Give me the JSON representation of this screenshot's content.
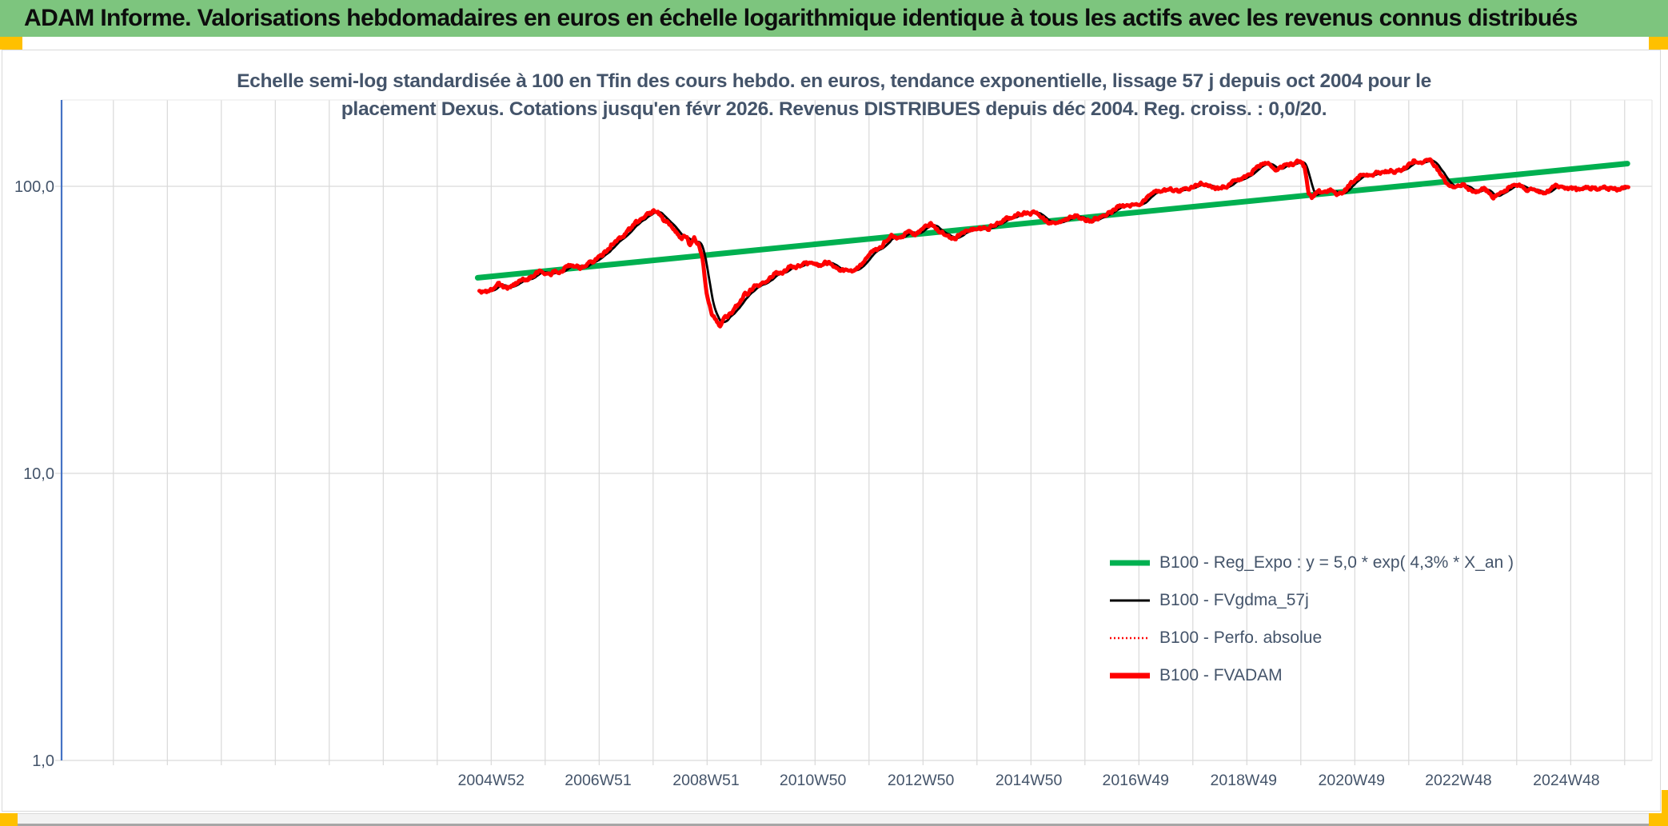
{
  "header": {
    "title": "ADAM Informe. Valorisations hebdomadaires en euros en échelle logarithmique identique à tous les actifs avec les revenus connus distribués",
    "bg_color": "#7DC57E",
    "corner_marker_color": "#FFC000"
  },
  "subtitle": {
    "line1": "Echelle semi-log standardisée à 100 en Tfin des cours hebdo. en euros, tendance exponentielle, lissage 57 j depuis oct 2004 pour le",
    "line2": "placement Dexus. Cotations jusqu'en févr 2026. Revenus DISTRIBUES depuis déc 2004. Reg. croiss. : 0,0/20."
  },
  "chart_data": {
    "type": "line",
    "title": "Echelle semi-log standardisée à 100 en Tfin des cours hebdo. en euros, tendance exponentielle, lissage 57 j depuis oct 2004 pour le placement Dexus. Cotations jusqu'en févr 2026. Revenus DISTRIBUES depuis déc 2004. Reg. croiss. : 0,0/20.",
    "grid": true,
    "legend_position": "inside-lower-right",
    "colors": {
      "axis_line": "#4472C4",
      "gridline": "#D9D9D9",
      "tick_text": "#44546A"
    },
    "y_axis": {
      "scale": "log",
      "ylim": [
        1,
        200
      ],
      "ticks": [
        {
          "label": "100,0",
          "value": 100
        },
        {
          "label": "10,0",
          "value": 10
        },
        {
          "label": "1,0",
          "value": 1
        }
      ]
    },
    "x_axis": {
      "unit": "week-of-year",
      "range_t": [
        1997.0,
        2026.5
      ],
      "gridline_every_years": 1,
      "ticks": [
        {
          "label": "2004W52",
          "t": 2005.0
        },
        {
          "label": "2006W51",
          "t": 2006.98
        },
        {
          "label": "2008W51",
          "t": 2008.98
        },
        {
          "label": "2010W50",
          "t": 2010.96
        },
        {
          "label": "2012W50",
          "t": 2012.96
        },
        {
          "label": "2014W50",
          "t": 2014.96
        },
        {
          "label": "2016W49",
          "t": 2016.94
        },
        {
          "label": "2018W49",
          "t": 2018.94
        },
        {
          "label": "2020W49",
          "t": 2020.94
        },
        {
          "label": "2022W48",
          "t": 2022.92
        },
        {
          "label": "2024W48",
          "t": 2024.92
        }
      ]
    },
    "series": [
      {
        "name": "B100 - Reg_Expo : y = 5,0 * exp( 4,3% *  X_an )",
        "color": "#00B050",
        "width": 7,
        "style": "solid",
        "kind": "trend",
        "model": {
          "type": "exponential",
          "t_start": 2004.75,
          "t_end": 2026.05,
          "v_start": 48.0,
          "annual_rate": 0.043
        }
      },
      {
        "name": "B100 - FVgdma_57j",
        "color": "#000000",
        "width": 2.8,
        "style": "solid",
        "kind": "moving-average-of-fvadam",
        "window_weeks": 9
      },
      {
        "name": "B100 - Perfo. absolue",
        "color": "#FF0000",
        "width": 1.5,
        "style": "dotted",
        "kind": "same-path-as-fvadam"
      },
      {
        "name": "B100 - FVADAM",
        "color": "#FF0000",
        "width": 5,
        "style": "solid",
        "kind": "weekly",
        "t_start": 2004.78,
        "t_end": 2026.08,
        "keypoints": [
          [
            2004.78,
            43
          ],
          [
            2004.88,
            42
          ],
          [
            2005.0,
            43.5
          ],
          [
            2005.15,
            45
          ],
          [
            2005.3,
            44
          ],
          [
            2005.5,
            46.5
          ],
          [
            2005.7,
            48.5
          ],
          [
            2005.9,
            50.5
          ],
          [
            2006.1,
            49.5
          ],
          [
            2006.3,
            51.5
          ],
          [
            2006.5,
            53
          ],
          [
            2006.65,
            52
          ],
          [
            2006.85,
            54.5
          ],
          [
            2007.05,
            58
          ],
          [
            2007.2,
            62
          ],
          [
            2007.35,
            65.5
          ],
          [
            2007.5,
            69
          ],
          [
            2007.65,
            74
          ],
          [
            2007.8,
            78
          ],
          [
            2007.95,
            80.5
          ],
          [
            2008.08,
            82.5
          ],
          [
            2008.2,
            77
          ],
          [
            2008.3,
            73
          ],
          [
            2008.42,
            69
          ],
          [
            2008.52,
            65
          ],
          [
            2008.6,
            68
          ],
          [
            2008.68,
            62.5
          ],
          [
            2008.76,
            66
          ],
          [
            2008.84,
            63
          ],
          [
            2008.92,
            55
          ],
          [
            2009.0,
            41
          ],
          [
            2009.08,
            36
          ],
          [
            2009.16,
            34.5
          ],
          [
            2009.24,
            33
          ],
          [
            2009.33,
            35.5
          ],
          [
            2009.45,
            36.5
          ],
          [
            2009.58,
            39
          ],
          [
            2009.7,
            42
          ],
          [
            2009.85,
            44
          ],
          [
            2010.0,
            46.5
          ],
          [
            2010.2,
            48.5
          ],
          [
            2010.4,
            50.5
          ],
          [
            2010.6,
            52.5
          ],
          [
            2010.8,
            54
          ],
          [
            2010.95,
            54.5
          ],
          [
            2011.1,
            53
          ],
          [
            2011.25,
            54
          ],
          [
            2011.4,
            52
          ],
          [
            2011.55,
            50.5
          ],
          [
            2011.7,
            50
          ],
          [
            2011.85,
            53
          ],
          [
            2012.0,
            56.5
          ],
          [
            2012.2,
            62
          ],
          [
            2012.4,
            67
          ],
          [
            2012.55,
            65.5
          ],
          [
            2012.7,
            68.5
          ],
          [
            2012.85,
            67
          ],
          [
            2013.0,
            71
          ],
          [
            2013.15,
            75
          ],
          [
            2013.3,
            71
          ],
          [
            2013.45,
            67.5
          ],
          [
            2013.6,
            66.5
          ],
          [
            2013.75,
            68.5
          ],
          [
            2013.9,
            70.5
          ],
          [
            2014.1,
            71
          ],
          [
            2014.3,
            73
          ],
          [
            2014.5,
            75.5
          ],
          [
            2014.7,
            78.5
          ],
          [
            2014.9,
            81
          ],
          [
            2015.05,
            82
          ],
          [
            2015.2,
            78.5
          ],
          [
            2015.35,
            75.5
          ],
          [
            2015.5,
            73.5
          ],
          [
            2015.65,
            77
          ],
          [
            2015.8,
            79.5
          ],
          [
            2015.95,
            78
          ],
          [
            2016.1,
            76.5
          ],
          [
            2016.3,
            79
          ],
          [
            2016.5,
            82.5
          ],
          [
            2016.7,
            85
          ],
          [
            2016.9,
            87
          ],
          [
            2017.1,
            90
          ],
          [
            2017.3,
            95
          ],
          [
            2017.45,
            97.5
          ],
          [
            2017.6,
            98.5
          ],
          [
            2017.75,
            97
          ],
          [
            2017.9,
            100
          ],
          [
            2018.05,
            101
          ],
          [
            2018.2,
            102
          ],
          [
            2018.35,
            99.5
          ],
          [
            2018.5,
            98
          ],
          [
            2018.65,
            100
          ],
          [
            2018.8,
            103
          ],
          [
            2018.95,
            106.5
          ],
          [
            2019.1,
            111
          ],
          [
            2019.25,
            117
          ],
          [
            2019.4,
            120.5
          ],
          [
            2019.52,
            114.5
          ],
          [
            2019.65,
            117.5
          ],
          [
            2019.8,
            120
          ],
          [
            2019.92,
            121
          ],
          [
            2020.0,
            123
          ],
          [
            2020.07,
            116
          ],
          [
            2020.14,
            96
          ],
          [
            2020.2,
            91
          ],
          [
            2020.3,
            96
          ],
          [
            2020.42,
            95
          ],
          [
            2020.55,
            96.5
          ],
          [
            2020.67,
            92.8
          ],
          [
            2020.78,
            95
          ],
          [
            2020.9,
            101
          ],
          [
            2021.0,
            105
          ],
          [
            2021.1,
            109
          ],
          [
            2021.25,
            108
          ],
          [
            2021.4,
            111
          ],
          [
            2021.55,
            110
          ],
          [
            2021.7,
            113
          ],
          [
            2021.85,
            112
          ],
          [
            2022.0,
            118
          ],
          [
            2022.1,
            121
          ],
          [
            2022.25,
            119
          ],
          [
            2022.35,
            122
          ],
          [
            2022.45,
            120
          ],
          [
            2022.55,
            113
          ],
          [
            2022.65,
            105
          ],
          [
            2022.75,
            99
          ],
          [
            2022.85,
            98
          ],
          [
            2022.95,
            102
          ],
          [
            2023.1,
            99
          ],
          [
            2023.25,
            97
          ],
          [
            2023.4,
            99.5
          ],
          [
            2023.55,
            92
          ],
          [
            2023.7,
            94.5
          ],
          [
            2023.85,
            98
          ],
          [
            2024.0,
            100
          ],
          [
            2024.15,
            98.5
          ],
          [
            2024.3,
            98.8
          ],
          [
            2024.5,
            95.6
          ],
          [
            2024.65,
            98
          ],
          [
            2024.8,
            102
          ],
          [
            2024.95,
            99
          ],
          [
            2025.1,
            96.8
          ],
          [
            2025.25,
            98.5
          ],
          [
            2025.4,
            100
          ],
          [
            2025.55,
            99
          ],
          [
            2025.7,
            98.7
          ],
          [
            2025.85,
            98
          ],
          [
            2026.0,
            99.5
          ],
          [
            2026.08,
            99.5
          ]
        ]
      }
    ]
  },
  "footer": {
    "strip_color": "#F2F2F2",
    "marker_color": "#FFC000"
  }
}
